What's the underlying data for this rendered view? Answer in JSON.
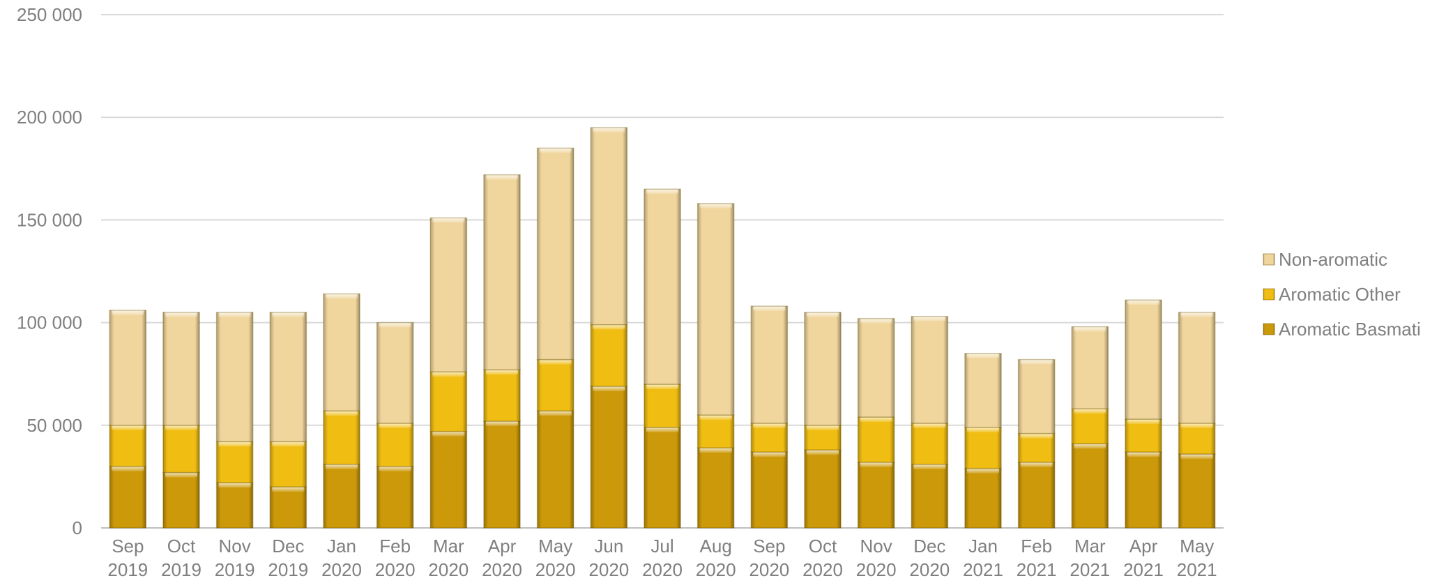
{
  "chart_data": {
    "type": "bar",
    "stacked": true,
    "title": "",
    "xlabel": "",
    "ylabel": "",
    "ylim": [
      0,
      250000
    ],
    "yticks": [
      0,
      50000,
      100000,
      150000,
      200000,
      250000
    ],
    "ytick_labels": [
      "0",
      "50 000",
      "100 000",
      "150 000",
      "200 000",
      "250 000"
    ],
    "grid": true,
    "legend_position": "right",
    "categories": [
      [
        "Sep",
        "2019"
      ],
      [
        "Oct",
        "2019"
      ],
      [
        "Nov",
        "2019"
      ],
      [
        "Dec",
        "2019"
      ],
      [
        "Jan",
        "2020"
      ],
      [
        "Feb",
        "2020"
      ],
      [
        "Mar",
        "2020"
      ],
      [
        "Apr",
        "2020"
      ],
      [
        "May",
        "2020"
      ],
      [
        "Jun",
        "2020"
      ],
      [
        "Jul",
        "2020"
      ],
      [
        "Aug",
        "2020"
      ],
      [
        "Sep",
        "2020"
      ],
      [
        "Oct",
        "2020"
      ],
      [
        "Nov",
        "2020"
      ],
      [
        "Dec",
        "2020"
      ],
      [
        "Jan",
        "2021"
      ],
      [
        "Feb",
        "2021"
      ],
      [
        "Mar",
        "2021"
      ],
      [
        "Apr",
        "2021"
      ],
      [
        "May",
        "2021"
      ]
    ],
    "series": [
      {
        "name": "Aromatic Basmati",
        "color": "#d9a30a",
        "values": [
          30000,
          27000,
          22000,
          20000,
          31000,
          30000,
          47000,
          52000,
          57000,
          69000,
          49000,
          39000,
          37000,
          38000,
          32000,
          31000,
          29000,
          32000,
          41000,
          37000,
          36000
        ]
      },
      {
        "name": "Aromatic Other",
        "color": "#ffc913",
        "values": [
          20000,
          23000,
          20000,
          22000,
          26000,
          21000,
          29000,
          25000,
          25000,
          30000,
          21000,
          16000,
          14000,
          12000,
          22000,
          20000,
          20000,
          14000,
          17000,
          16000,
          15000
        ]
      },
      {
        "name": "Non-aromatic",
        "color": "#ffe3a6",
        "values": [
          56000,
          55000,
          63000,
          63000,
          57000,
          49000,
          75000,
          95000,
          103000,
          96000,
          95000,
          103000,
          57000,
          55000,
          48000,
          52000,
          36000,
          36000,
          40000,
          58000,
          54000
        ]
      }
    ]
  }
}
